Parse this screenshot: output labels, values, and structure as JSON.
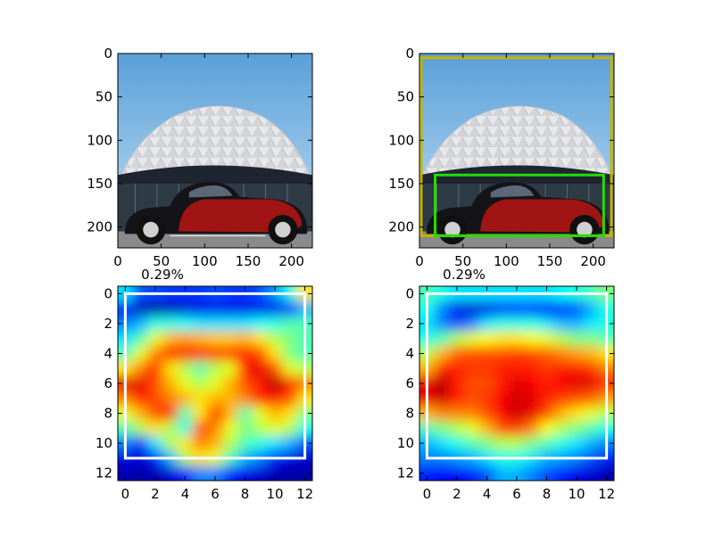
{
  "figure": {
    "background": "#ffffff",
    "colormap": "jet"
  },
  "chart_data": [
    {
      "type": "image",
      "panel": "top-left",
      "content": "photo of a classic red and black car in front of a white geodesic dome building",
      "xlim": [
        0,
        224
      ],
      "ylim": [
        224,
        0
      ],
      "xticks": [
        0,
        50,
        100,
        150,
        200
      ],
      "yticks": [
        0,
        50,
        100,
        150,
        200
      ],
      "title": ""
    },
    {
      "type": "image",
      "panel": "top-right",
      "content": "same photo with two bounding boxes overlaid",
      "xlim": [
        0,
        224
      ],
      "ylim": [
        224,
        0
      ],
      "xticks": [
        0,
        50,
        100,
        150,
        200
      ],
      "yticks": [
        0,
        50,
        100,
        150,
        200
      ],
      "title": "",
      "boxes": [
        {
          "color": "#c8b400",
          "x0": 2,
          "y0": 5,
          "x1": 221,
          "y1": 210
        },
        {
          "color": "#22dd00",
          "x0": 18,
          "y0": 140,
          "x1": 212,
          "y1": 210
        }
      ]
    },
    {
      "type": "heatmap",
      "panel": "bottom-left",
      "title": "0.29%",
      "xlim": [
        -0.5,
        12.5
      ],
      "ylim": [
        12.5,
        -0.5
      ],
      "xticks": [
        0,
        2,
        4,
        6,
        8,
        10,
        12
      ],
      "yticks": [
        0,
        2,
        4,
        6,
        8,
        10,
        12
      ],
      "box": {
        "color": "#ffffff",
        "x0": 0,
        "y0": 0,
        "x1": 12,
        "y1": 11
      },
      "values": [
        [
          0.35,
          0.2,
          0.2,
          0.18,
          0.18,
          0.18,
          0.2,
          0.18,
          0.18,
          0.2,
          0.28,
          0.4,
          0.65
        ],
        [
          0.12,
          0.05,
          0.04,
          0.06,
          0.08,
          0.1,
          0.1,
          0.1,
          0.1,
          0.1,
          0.1,
          0.15,
          0.3
        ],
        [
          0.25,
          0.3,
          0.4,
          0.4,
          0.38,
          0.35,
          0.35,
          0.35,
          0.35,
          0.38,
          0.4,
          0.45,
          0.45
        ],
        [
          0.35,
          0.45,
          0.6,
          0.7,
          0.72,
          0.7,
          0.68,
          0.68,
          0.7,
          0.65,
          0.55,
          0.5,
          0.45
        ],
        [
          0.45,
          0.6,
          0.75,
          0.85,
          0.88,
          0.85,
          0.82,
          0.82,
          0.85,
          0.8,
          0.65,
          0.5,
          0.45
        ],
        [
          0.65,
          0.75,
          0.85,
          0.65,
          0.55,
          0.45,
          0.55,
          0.6,
          0.85,
          0.9,
          0.8,
          0.6,
          0.55
        ],
        [
          0.9,
          0.9,
          0.8,
          0.7,
          0.6,
          0.55,
          0.6,
          0.7,
          0.8,
          0.85,
          0.95,
          0.85,
          0.75
        ],
        [
          0.75,
          0.85,
          0.8,
          0.75,
          0.7,
          0.65,
          0.7,
          0.7,
          0.75,
          0.85,
          0.85,
          0.8,
          0.65
        ],
        [
          0.6,
          0.7,
          0.8,
          0.85,
          0.45,
          0.65,
          0.85,
          0.7,
          0.45,
          0.6,
          0.7,
          0.65,
          0.5
        ],
        [
          0.45,
          0.55,
          0.65,
          0.55,
          0.4,
          0.8,
          0.75,
          0.6,
          0.5,
          0.55,
          0.6,
          0.55,
          0.4
        ],
        [
          0.25,
          0.15,
          0.35,
          0.55,
          0.65,
          0.75,
          0.7,
          0.55,
          0.45,
          0.4,
          0.35,
          0.3,
          0.2
        ],
        [
          0.1,
          0.08,
          0.15,
          0.3,
          0.55,
          0.65,
          0.6,
          0.45,
          0.3,
          0.25,
          0.15,
          0.1,
          0.08
        ],
        [
          0.05,
          0.04,
          0.05,
          0.08,
          0.15,
          0.25,
          0.25,
          0.15,
          0.1,
          0.08,
          0.05,
          0.04,
          0.04
        ]
      ]
    },
    {
      "type": "heatmap",
      "panel": "bottom-right",
      "title": "0.29%",
      "xlim": [
        -0.5,
        12.5
      ],
      "ylim": [
        12.5,
        -0.5
      ],
      "xticks": [
        0,
        2,
        4,
        6,
        8,
        10,
        12
      ],
      "yticks": [
        0,
        2,
        4,
        6,
        8,
        10,
        12
      ],
      "box": {
        "color": "#ffffff",
        "x0": 0,
        "y0": 0,
        "x1": 12,
        "y1": 11
      },
      "values": [
        [
          0.45,
          0.4,
          0.35,
          0.35,
          0.35,
          0.35,
          0.35,
          0.35,
          0.35,
          0.38,
          0.4,
          0.45,
          0.5
        ],
        [
          0.4,
          0.25,
          0.1,
          0.08,
          0.1,
          0.12,
          0.15,
          0.15,
          0.12,
          0.15,
          0.2,
          0.3,
          0.4
        ],
        [
          0.35,
          0.25,
          0.2,
          0.25,
          0.35,
          0.4,
          0.4,
          0.4,
          0.35,
          0.3,
          0.3,
          0.35,
          0.4
        ],
        [
          0.4,
          0.45,
          0.55,
          0.6,
          0.62,
          0.65,
          0.65,
          0.62,
          0.6,
          0.55,
          0.5,
          0.5,
          0.45
        ],
        [
          0.55,
          0.7,
          0.78,
          0.8,
          0.8,
          0.8,
          0.82,
          0.8,
          0.78,
          0.75,
          0.72,
          0.7,
          0.65
        ],
        [
          0.7,
          0.85,
          0.85,
          0.82,
          0.82,
          0.85,
          0.85,
          0.85,
          0.82,
          0.85,
          0.85,
          0.82,
          0.75
        ],
        [
          0.9,
          0.95,
          0.85,
          0.8,
          0.8,
          0.85,
          0.9,
          0.88,
          0.85,
          0.88,
          0.9,
          0.9,
          0.85
        ],
        [
          0.9,
          0.92,
          0.85,
          0.8,
          0.82,
          0.88,
          0.92,
          0.9,
          0.85,
          0.82,
          0.8,
          0.78,
          0.72
        ],
        [
          0.7,
          0.75,
          0.75,
          0.75,
          0.8,
          0.88,
          0.92,
          0.9,
          0.8,
          0.7,
          0.65,
          0.6,
          0.55
        ],
        [
          0.45,
          0.5,
          0.55,
          0.6,
          0.7,
          0.8,
          0.82,
          0.75,
          0.62,
          0.55,
          0.5,
          0.45,
          0.4
        ],
        [
          0.3,
          0.35,
          0.4,
          0.45,
          0.5,
          0.55,
          0.55,
          0.5,
          0.45,
          0.4,
          0.35,
          0.3,
          0.25
        ],
        [
          0.25,
          0.25,
          0.28,
          0.3,
          0.35,
          0.4,
          0.4,
          0.35,
          0.3,
          0.28,
          0.25,
          0.2,
          0.15
        ],
        [
          0.15,
          0.12,
          0.12,
          0.15,
          0.2,
          0.3,
          0.3,
          0.25,
          0.2,
          0.15,
          0.1,
          0.08,
          0.05
        ]
      ]
    }
  ]
}
